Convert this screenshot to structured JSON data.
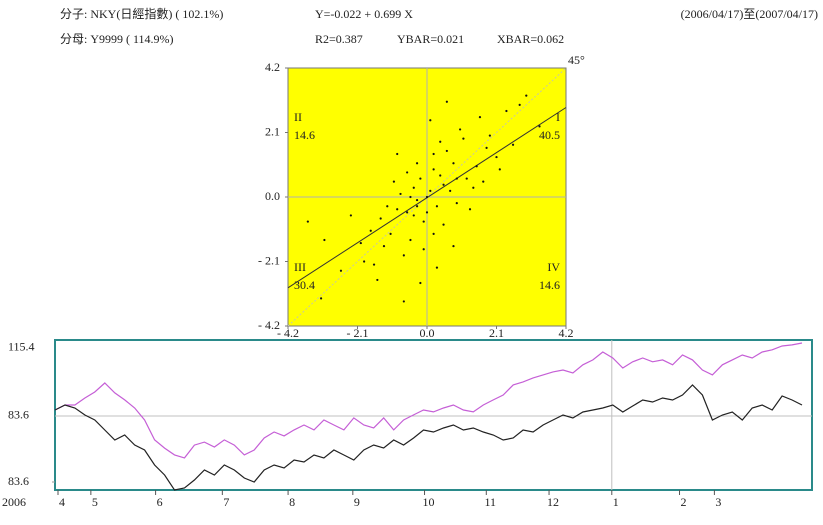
{
  "header": {
    "numerator": "分子: NKY(日經指數) ( 102.1%)",
    "denominator": "分母: Y9999 ( 114.9%)",
    "equation": "Y=-0.022 + 0.699 X",
    "r2": "R2=0.387",
    "ybar": "YBAR=0.021",
    "xbar": "XBAR=0.062",
    "period": "(2006/04/17)至(2007/04/17)"
  },
  "chart_data": [
    {
      "type": "scatter",
      "background": "#ffff00",
      "color": "#111111",
      "xlim": [
        -4.2,
        4.2
      ],
      "ylim": [
        -4.2,
        4.2
      ],
      "xticks": [
        {
          "value": -4.2,
          "label": "- 4.2"
        },
        {
          "value": -2.1,
          "label": "- 2.1"
        },
        {
          "value": 0,
          "label": "0.0"
        },
        2.1,
        4.2
      ],
      "yticks": [
        4.2,
        2.1,
        {
          "value": 0,
          "label": "0.0"
        },
        {
          "value": -2.1,
          "label": "- 2.1"
        },
        {
          "value": -4.2,
          "label": "- 4.2"
        }
      ],
      "fit": {
        "intercept": -0.022,
        "slope": 0.699
      },
      "diagonal_label": "45°",
      "quadrants": [
        {
          "name": "I",
          "value": 40.5
        },
        {
          "name": "II",
          "value": 14.6
        },
        {
          "name": "III",
          "value": 30.4
        },
        {
          "name": "IV",
          "value": 14.6
        }
      ],
      "x": [
        0.1,
        -0.3,
        0.5,
        -0.6,
        0.2,
        -0.1,
        0.8,
        -0.9,
        0.3,
        -0.4,
        1.2,
        -1.1,
        0.6,
        -0.5,
        1.5,
        -1.4,
        0.9,
        -0.2,
        0.4,
        -0.7,
        1.8,
        -1.7,
        0.0,
        0.7,
        -0.8,
        1.0,
        -1.3,
        2.1,
        -2.0,
        0.2,
        -0.3,
        1.3,
        -1.0,
        2.4,
        -2.6,
        0.5,
        -0.6,
        1.6,
        -1.6,
        2.8,
        -3.2,
        3.4,
        -3.6,
        -3.1,
        0.1,
        -0.2,
        0.3,
        1.1,
        -1.2,
        0.8,
        -0.9,
        2.2,
        -2.3,
        0.0,
        0.4,
        -0.4,
        1.4,
        -1.5,
        0.6,
        -0.7,
        1.9,
        -1.9,
        3.0,
        0.2,
        -0.1,
        1.7,
        -0.5,
        0.9,
        -0.3,
        2.6
      ],
      "values": [
        0.2,
        -0.1,
        0.4,
        -0.5,
        0.9,
        -0.8,
        1.1,
        -0.4,
        -0.3,
        0.3,
        0.6,
        -1.2,
        1.5,
        -1.4,
        1.0,
        -0.7,
        -0.2,
        0.6,
        1.8,
        -1.9,
        1.6,
        -1.1,
        -0.5,
        0.2,
        0.1,
        2.2,
        -1.6,
        1.3,
        -1.5,
        -1.2,
        1.1,
        -0.4,
        0.5,
        2.8,
        -2.4,
        -0.9,
        0.8,
        2.6,
        -2.2,
        3.0,
        -3.3,
        2.3,
        -0.8,
        -1.4,
        2.5,
        -2.8,
        -2.3,
        1.9,
        -0.3,
        -1.6,
        1.4,
        0.9,
        -0.6,
        0.0,
        0.7,
        -0.6,
        0.3,
        -2.7,
        3.1,
        -3.4,
        2.0,
        -2.1,
        3.3,
        1.4,
        -1.7,
        0.5,
        0.0,
        0.6,
        -0.3,
        1.7
      ]
    },
    {
      "type": "line",
      "border": "#2a8a8a",
      "ylim": [
        49,
        119.1
      ],
      "yticks": [
        115.4,
        83.6
      ],
      "y2lim": [
        82,
        112
      ],
      "y2ticks": [
        83.6
      ],
      "xlim": [
        0,
        76
      ],
      "x_prefix": "2006",
      "xticks": [
        {
          "value": 0.3,
          "label": "4"
        },
        {
          "value": 3.6,
          "label": "5"
        },
        {
          "value": 10.1,
          "label": "6"
        },
        {
          "value": 16.8,
          "label": "7"
        },
        {
          "value": 23.4,
          "label": "8"
        },
        {
          "value": 29.9,
          "label": "9"
        },
        {
          "value": 37.1,
          "label": "10"
        },
        {
          "value": 43.3,
          "label": "11"
        },
        {
          "value": 49.6,
          "label": "12"
        },
        {
          "value": 55.9,
          "label": "1"
        },
        {
          "value": 62.7,
          "label": "2"
        },
        {
          "value": 66.2,
          "label": "3"
        }
      ],
      "year_divider": 55.9,
      "series": [
        {
          "color": "#c55fd6",
          "values": [
            86.4,
            88.7,
            88.7,
            92.0,
            94.8,
            99.0,
            94.4,
            91.1,
            87.3,
            81.7,
            72.4,
            68.6,
            65.4,
            64.0,
            70.0,
            71.4,
            69.1,
            72.4,
            70.0,
            65.4,
            67.7,
            73.3,
            76.1,
            74.3,
            77.1,
            79.4,
            77.1,
            81.7,
            79.4,
            77.1,
            82.7,
            79.4,
            78.0,
            82.7,
            77.1,
            81.7,
            84.1,
            86.4,
            85.5,
            87.3,
            88.7,
            86.4,
            85.5,
            88.7,
            91.1,
            93.4,
            98.1,
            99.5,
            101.4,
            102.8,
            104.2,
            105.1,
            103.7,
            107.5,
            109.8,
            113.5,
            110.7,
            106.0,
            108.9,
            110.7,
            108.9,
            109.8,
            107.5,
            112.1,
            109.8,
            105.1,
            102.8,
            107.5,
            109.8,
            112.1,
            110.7,
            113.5,
            114.5,
            116.3,
            116.8,
            117.7
          ]
        },
        {
          "color": "#222222",
          "axis": "y2",
          "values": [
            98,
            99,
            98.4,
            97,
            96,
            94,
            92,
            93,
            91,
            90,
            87,
            85,
            82,
            82.4,
            84,
            86,
            85,
            87,
            86,
            84.4,
            83.6,
            86,
            87,
            86.4,
            88,
            87.6,
            89,
            88.4,
            90,
            89,
            88,
            90,
            91,
            90.4,
            92,
            91,
            92.4,
            94,
            93.6,
            94.4,
            95,
            94,
            94.4,
            93.6,
            93,
            92,
            92.4,
            94,
            93.6,
            95,
            96,
            97,
            96.4,
            97.6,
            98,
            98.4,
            99,
            97.6,
            98.8,
            100,
            99.6,
            100.4,
            100,
            101,
            103,
            101,
            96,
            97,
            97.6,
            96,
            98.4,
            99,
            98,
            100.8,
            100,
            99
          ]
        }
      ]
    }
  ]
}
